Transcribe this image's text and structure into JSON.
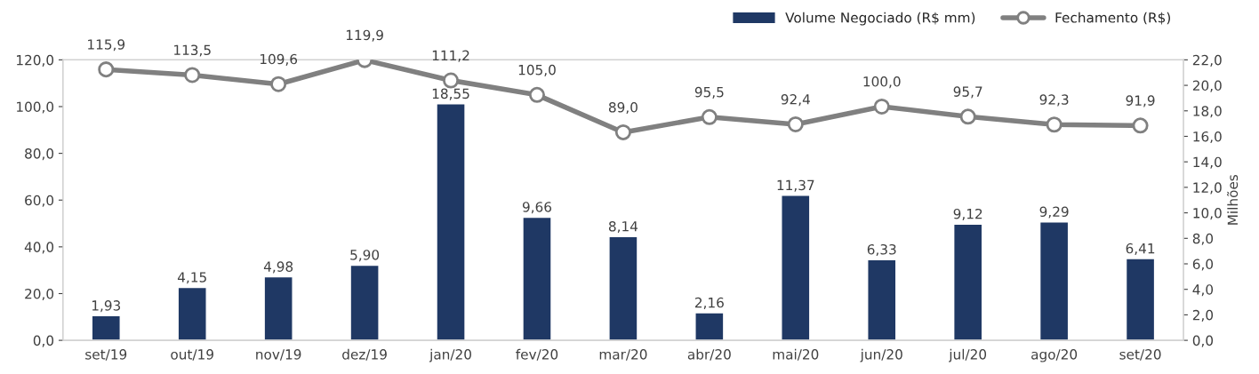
{
  "chart_data": {
    "type": "bar",
    "categories": [
      "set/19",
      "out/19",
      "nov/19",
      "dez/19",
      "jan/20",
      "fev/20",
      "mar/20",
      "abr/20",
      "mai/20",
      "jun/20",
      "jul/20",
      "ago/20",
      "set/20"
    ],
    "y2label": "Milhões",
    "series": [
      {
        "name": "Volume Negociado (R$ mm)",
        "axis": "y2",
        "color": "#1f3864",
        "values": [
          1.93,
          4.15,
          4.98,
          5.9,
          18.55,
          9.66,
          8.14,
          2.16,
          11.37,
          6.33,
          9.12,
          9.29,
          6.41
        ],
        "value_labels": [
          "1,93",
          "4,15",
          "4,98",
          "5,90",
          "18,55",
          "9,66",
          "8,14",
          "2,16",
          "11,37",
          "6,33",
          "9,12",
          "9,29",
          "6,41"
        ]
      },
      {
        "name": "Fechamento (R$)",
        "type": "line",
        "axis": "y",
        "color": "#808080",
        "marker": "circle",
        "values": [
          115.9,
          113.5,
          109.6,
          119.9,
          111.2,
          105.0,
          89.0,
          95.5,
          92.4,
          100.0,
          95.7,
          92.3,
          91.9
        ],
        "value_labels": [
          "115,9",
          "113,5",
          "109,6",
          "119,9",
          "111,2",
          "105,0",
          "89,0",
          "95,5",
          "92,4",
          "100,0",
          "95,7",
          "92,3",
          "91,9"
        ]
      }
    ],
    "ylim": [
      0,
      120
    ],
    "yticks": [
      {
        "value": 0,
        "label": "0,0"
      },
      {
        "value": 20,
        "label": "20,0"
      },
      {
        "value": 40,
        "label": "40,0"
      },
      {
        "value": 60,
        "label": "60,0"
      },
      {
        "value": 80,
        "label": "80,0"
      },
      {
        "value": 100,
        "label": "100,0"
      },
      {
        "value": 120,
        "label": "120,0"
      }
    ],
    "y2lim": [
      0,
      22
    ],
    "y2ticks": [
      {
        "value": 0,
        "label": "0,0"
      },
      {
        "value": 2,
        "label": "2,0"
      },
      {
        "value": 4,
        "label": "4,0"
      },
      {
        "value": 6,
        "label": "6,0"
      },
      {
        "value": 8,
        "label": "8,0"
      },
      {
        "value": 10,
        "label": "10,0"
      },
      {
        "value": 12,
        "label": "12,0"
      },
      {
        "value": 14,
        "label": "14,0"
      },
      {
        "value": 16,
        "label": "16,0"
      },
      {
        "value": 18,
        "label": "18,0"
      },
      {
        "value": 20,
        "label": "20,0"
      },
      {
        "value": 22,
        "label": "22,0"
      }
    ],
    "grid": false,
    "legend": "top right"
  }
}
